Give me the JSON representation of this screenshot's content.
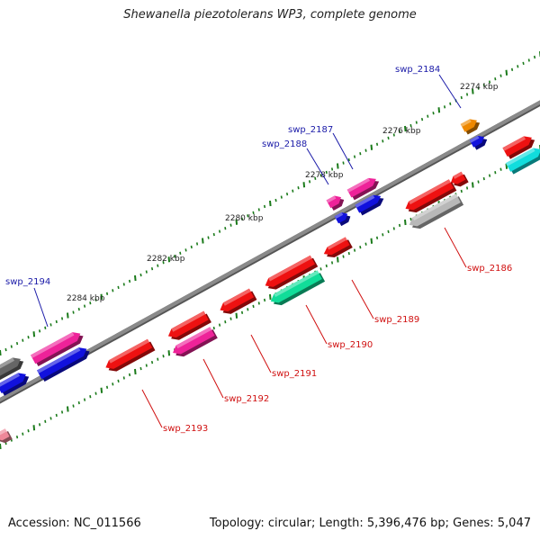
{
  "title": "Shewanella piezotolerans WP3, complete genome",
  "footer": {
    "accession": "Accession: NC_011566",
    "summary": "Topology: circular; Length: 5,396,476 bp; Genes: 5,047"
  },
  "kbp_labels": [
    "2274 kbp",
    "2276 kbp",
    "2278 kbp",
    "2280 kbp",
    "2282 kbp",
    "2284 kbp"
  ],
  "gene_labels": {
    "forward": [
      "swp_2184",
      "swp_2187",
      "swp_2188",
      "swp_2194"
    ],
    "reverse": [
      "swp_2186",
      "swp_2189",
      "swp_2190",
      "swp_2191",
      "swp_2192",
      "swp_2193"
    ]
  },
  "colors": {
    "backbone": "#8a8a8a",
    "tick": "#1a7a1a",
    "forward_label": "#1a1aa8",
    "reverse_label": "#d01010",
    "red": "#ee1111",
    "magenta": "#ee2299",
    "blue": "#1111dd",
    "orange": "#ee8800",
    "gray": "#b8b8b8",
    "darkgray": "#666666",
    "teal": "#11dd99",
    "cyan": "#11dddd",
    "pink": "#ee8899"
  }
}
